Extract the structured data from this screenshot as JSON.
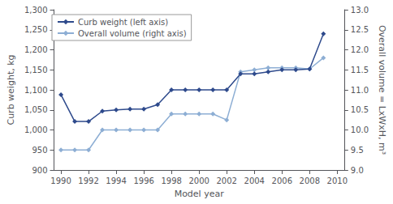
{
  "chart_data": {
    "type": "line",
    "xlabel": "Model year",
    "ylabel": "Curb weight, kg",
    "y2label": "Overall volume = LxWxH, m³",
    "x": [
      1990,
      1991,
      1992,
      1993,
      1994,
      1995,
      1996,
      1997,
      1998,
      1999,
      2000,
      2001,
      2002,
      2003,
      2004,
      2005,
      2006,
      2007,
      2008,
      2009
    ],
    "series": [
      {
        "name": "Curb weight (left axis)",
        "color": "#2E4A8C",
        "marker": "diamond",
        "values": [
          1088,
          1021,
          1021,
          1047,
          1050,
          1052,
          1052,
          1063,
          1100,
          1100,
          1100,
          1100,
          1100,
          1140,
          1140,
          1145,
          1150,
          1150,
          1152,
          1240
        ]
      },
      {
        "name": "Overall volume (right axis)",
        "color": "#8DAED4",
        "marker": "diamond",
        "axis": "y2",
        "values": [
          9.5,
          9.5,
          9.5,
          10.0,
          10.0,
          10.0,
          10.0,
          10.0,
          10.4,
          10.4,
          10.4,
          10.4,
          10.25,
          11.45,
          11.5,
          11.55,
          11.55,
          11.55,
          11.52,
          11.8
        ]
      }
    ],
    "xlim": [
      1989.5,
      2010.5
    ],
    "xticks": [
      1990,
      1992,
      1994,
      1996,
      1998,
      2000,
      2002,
      2004,
      2006,
      2008,
      2010
    ],
    "ylim": [
      900,
      1300
    ],
    "yticks": [
      900,
      950,
      {
        "value": 1000,
        "label": "1,000"
      },
      {
        "value": 1050,
        "label": "1,050"
      },
      {
        "value": 1100,
        "label": "1,100"
      },
      {
        "value": 1150,
        "label": "1,150"
      },
      {
        "value": 1200,
        "label": "1,200"
      },
      {
        "value": 1250,
        "label": "1,250"
      },
      {
        "value": 1300,
        "label": "1,300"
      }
    ],
    "y2lim": [
      9.0,
      13.0
    ],
    "y2ticks": [
      {
        "value": 9,
        "label": "9.0"
      },
      9.5,
      {
        "value": 10,
        "label": "10.0"
      },
      10.5,
      {
        "value": 11,
        "label": "11.0"
      },
      11.5,
      {
        "value": 12,
        "label": "12.0"
      },
      12.5,
      {
        "value": 13,
        "label": "13.0"
      }
    ],
    "legend": "upper left",
    "grid": false
  }
}
